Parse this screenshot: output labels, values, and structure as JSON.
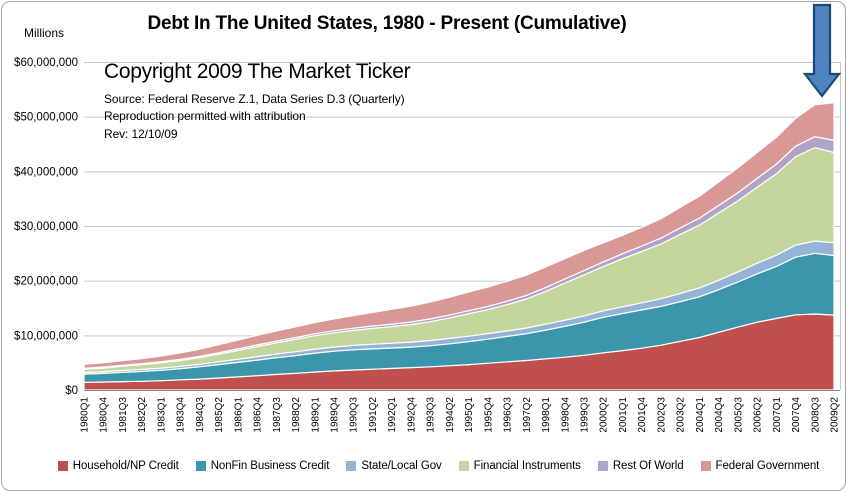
{
  "header": {
    "title": "Debt In The United States, 1980 - Present (Cumulative)",
    "axis_unit_label": "Millions"
  },
  "overlay": {
    "copyright": "Copyright 2009 The Market Ticker",
    "source": "Source: Federal Reserve Z.1, Data Series D.3 (Quarterly)",
    "attribution": "Reproduction permitted with attribution",
    "revision": "Rev: 12/10/09"
  },
  "chart_data": {
    "type": "area",
    "stacked": true,
    "title": "Debt In The United States, 1980 - Present (Cumulative)",
    "ylabel": "Millions",
    "grid": true,
    "legend_position": "bottom",
    "y_axis": {
      "range": [
        0,
        60000000
      ],
      "tick_values": [
        60000000,
        50000000,
        40000000,
        30000000,
        20000000,
        10000000,
        0
      ],
      "tick_labels": [
        "$60,000,000",
        "$50,000,000",
        "$40,000,000",
        "$30,000,000",
        "$20,000,000",
        "$10,000,000",
        "$0"
      ]
    },
    "categories": [
      "1980Q1",
      "1980Q4",
      "1981Q3",
      "1982Q2",
      "1983Q1",
      "1983Q4",
      "1984Q3",
      "1985Q2",
      "1986Q1",
      "1986Q4",
      "1987Q3",
      "1988Q2",
      "1989Q1",
      "1989Q4",
      "1990Q3",
      "1991Q2",
      "1992Q1",
      "1992Q4",
      "1993Q3",
      "1994Q2",
      "1995Q1",
      "1995Q4",
      "1996Q3",
      "1997Q2",
      "1998Q1",
      "1998Q4",
      "1999Q3",
      "2000Q2",
      "2001Q1",
      "2001Q4",
      "2002Q3",
      "2003Q2",
      "2004Q1",
      "2004Q4",
      "2005Q3",
      "2006Q2",
      "2007Q1",
      "2007Q4",
      "2008Q3",
      "2009Q2"
    ],
    "series": [
      {
        "name": "Household/NP Credit",
        "color": "#C0504D",
        "values": [
          1400000,
          1460000,
          1540000,
          1600000,
          1700000,
          1860000,
          2000000,
          2200000,
          2400000,
          2620000,
          2850000,
          3050000,
          3300000,
          3500000,
          3650000,
          3800000,
          3950000,
          4100000,
          4250000,
          4450000,
          4650000,
          4900000,
          5150000,
          5400000,
          5700000,
          6000000,
          6350000,
          6800000,
          7200000,
          7650000,
          8200000,
          8900000,
          9600000,
          10550000,
          11500000,
          12400000,
          13100000,
          13750000,
          13900000,
          13700000
        ]
      },
      {
        "name": "NonFin Business Credit",
        "color": "#3B95AB",
        "values": [
          1500000,
          1580000,
          1700000,
          1800000,
          1900000,
          2050000,
          2250000,
          2450000,
          2650000,
          2850000,
          3050000,
          3250000,
          3450000,
          3600000,
          3700000,
          3720000,
          3730000,
          3750000,
          3850000,
          4000000,
          4200000,
          4400000,
          4650000,
          4900000,
          5250000,
          5650000,
          6050000,
          6500000,
          6800000,
          7000000,
          7100000,
          7250000,
          7450000,
          7800000,
          8250000,
          8850000,
          9500000,
          10550000,
          11100000,
          10900000
        ]
      },
      {
        "name": "State/Local Gov",
        "color": "#95B3D7",
        "values": [
          300000,
          320000,
          340000,
          370000,
          400000,
          430000,
          460000,
          520000,
          580000,
          630000,
          670000,
          700000,
          730000,
          760000,
          800000,
          850000,
          880000,
          920000,
          950000,
          980000,
          1000000,
          1010000,
          1020000,
          1040000,
          1080000,
          1120000,
          1160000,
          1180000,
          1220000,
          1300000,
          1400000,
          1520000,
          1620000,
          1720000,
          1850000,
          1950000,
          2050000,
          2180000,
          2250000,
          2350000
        ]
      },
      {
        "name": "Financial Instruments",
        "color": "#C3D69B",
        "values": [
          580000,
          650000,
          750000,
          850000,
          950000,
          1050000,
          1200000,
          1400000,
          1600000,
          1850000,
          2050000,
          2250000,
          2450000,
          2600000,
          2750000,
          2900000,
          3050000,
          3200000,
          3450000,
          3750000,
          4100000,
          4400000,
          4800000,
          5300000,
          6000000,
          6800000,
          7500000,
          8100000,
          8800000,
          9400000,
          10000000,
          10800000,
          11500000,
          12300000,
          13000000,
          13900000,
          14900000,
          16200000,
          17100000,
          16500000
        ]
      },
      {
        "name": "Rest Of World",
        "color": "#B2A2C7",
        "values": [
          180000,
          190000,
          200000,
          210000,
          220000,
          230000,
          240000,
          260000,
          280000,
          300000,
          320000,
          340000,
          370000,
          390000,
          410000,
          430000,
          450000,
          470000,
          500000,
          520000,
          550000,
          580000,
          620000,
          660000,
          700000,
          740000,
          800000,
          860000,
          920000,
          1000000,
          1080000,
          1180000,
          1280000,
          1380000,
          1480000,
          1600000,
          1750000,
          1900000,
          2000000,
          2200000
        ]
      },
      {
        "name": "Federal Government",
        "color": "#D99795",
        "values": [
          740000,
          780000,
          840000,
          920000,
          1050000,
          1170000,
          1300000,
          1450000,
          1600000,
          1750000,
          1850000,
          1950000,
          2050000,
          2150000,
          2300000,
          2500000,
          2700000,
          2900000,
          3100000,
          3250000,
          3400000,
          3550000,
          3650000,
          3700000,
          3750000,
          3700000,
          3650000,
          3450000,
          3350000,
          3400000,
          3550000,
          3750000,
          4000000,
          4300000,
          4550000,
          4750000,
          4900000,
          5100000,
          5800000,
          6900000
        ]
      }
    ],
    "annotation": {
      "type": "down-arrow",
      "target": "2009Q2",
      "fill_color": "#5083C0",
      "border_color": "#17497B"
    },
    "grid_color": "#C6C6C6",
    "axis_line_color": "#8C8C8C"
  }
}
